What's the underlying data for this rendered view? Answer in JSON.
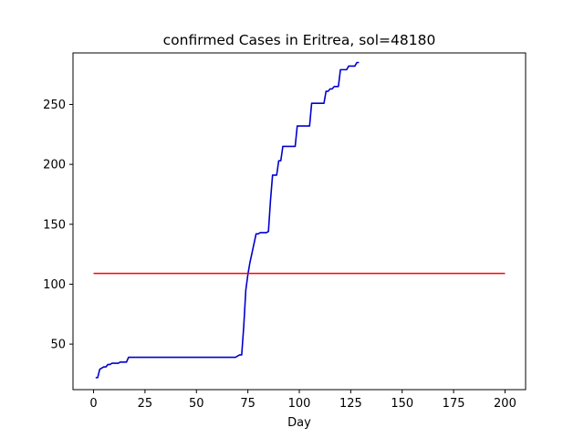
{
  "chart_data": {
    "type": "line",
    "title": "confirmed Cases in Eritrea, sol=48180",
    "xlabel": "Day",
    "ylabel": "",
    "xlim": [
      -10,
      210
    ],
    "ylim": [
      12,
      293
    ],
    "xticks": [
      0,
      25,
      50,
      75,
      100,
      125,
      150,
      175,
      200
    ],
    "yticks": [
      50,
      100,
      150,
      200,
      250
    ],
    "grid": false,
    "series": [
      {
        "color": "#0000cd",
        "x": [
          1,
          2,
          3,
          4,
          5,
          6,
          7,
          8,
          9,
          10,
          11,
          12,
          13,
          14,
          15,
          16,
          17,
          68,
          69,
          70,
          71,
          72,
          73,
          74,
          75,
          76,
          77,
          78,
          79,
          80,
          81,
          82,
          83,
          84,
          85,
          86,
          87,
          88,
          89,
          90,
          91,
          92,
          93,
          94,
          95,
          96,
          97,
          98,
          99,
          100,
          101,
          102,
          103,
          104,
          105,
          106,
          107,
          108,
          109,
          110,
          111,
          112,
          113,
          114,
          115,
          116,
          117,
          118,
          119,
          120,
          121,
          122,
          123,
          124,
          125,
          126,
          127,
          128,
          129
        ],
        "y": [
          22,
          22,
          29,
          30,
          31,
          31,
          33,
          33,
          34,
          34,
          34,
          34,
          35,
          35,
          35,
          35,
          39,
          39,
          39,
          40,
          41,
          41,
          65,
          95,
          108,
          118,
          126,
          134,
          142,
          142,
          143,
          143,
          143,
          143,
          144,
          170,
          191,
          191,
          191,
          203,
          203,
          215,
          215,
          215,
          215,
          215,
          215,
          215,
          232,
          232,
          232,
          232,
          232,
          232,
          232,
          251,
          251,
          251,
          251,
          251,
          251,
          251,
          261,
          261,
          263,
          263,
          265,
          265,
          265,
          279,
          279,
          279,
          279,
          282,
          282,
          282,
          282,
          285,
          285
        ]
      },
      {
        "color": "#ff0000",
        "x": [
          0,
          200
        ],
        "y": [
          109,
          109
        ]
      }
    ]
  }
}
